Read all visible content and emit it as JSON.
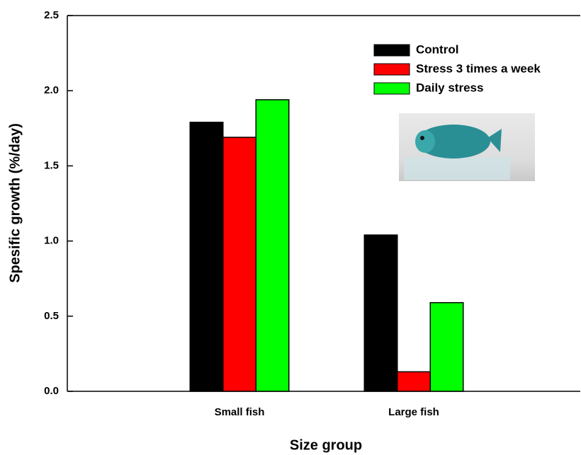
{
  "chart_data": {
    "type": "bar",
    "x_label": "Size group",
    "y_label": "Spesific growth (%/day)",
    "categories": [
      "Small fish",
      "Large fish"
    ],
    "series": [
      {
        "name": "Control",
        "color": "#000000",
        "values": [
          1.79,
          1.04
        ]
      },
      {
        "name": "Stress 3 times a week",
        "color": "#ff0000",
        "values": [
          1.69,
          0.13
        ]
      },
      {
        "name": "Daily stress",
        "color": "#00ff00",
        "values": [
          1.94,
          0.59
        ]
      }
    ],
    "ylim": [
      0,
      2.5
    ],
    "yticks": [
      {
        "value": 0,
        "label": "0.0"
      },
      0.5,
      {
        "value": 1,
        "label": "1.0"
      },
      1.5,
      {
        "value": 2,
        "label": "2.0"
      },
      2.5
    ],
    "legend": "upper right"
  }
}
